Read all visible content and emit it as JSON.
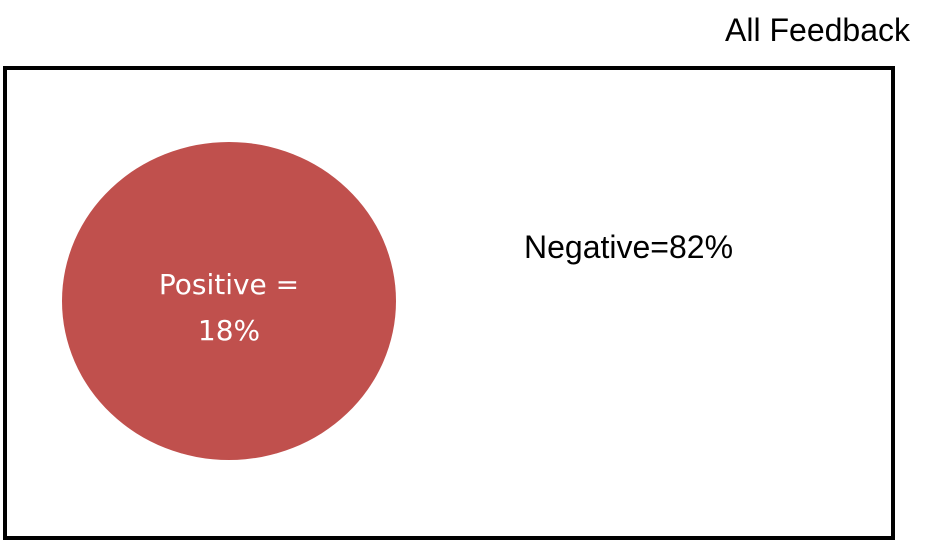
{
  "title": "All Feedback",
  "segments": {
    "positive": {
      "label_line1": "Positive =",
      "label_line2": "18%",
      "value": 18,
      "color": "#c0504d"
    },
    "negative": {
      "label": "Negative=82%",
      "value": 82
    }
  },
  "colors": {
    "box_border": "#000000",
    "positive_text": "#ffffff",
    "text": "#000000"
  }
}
